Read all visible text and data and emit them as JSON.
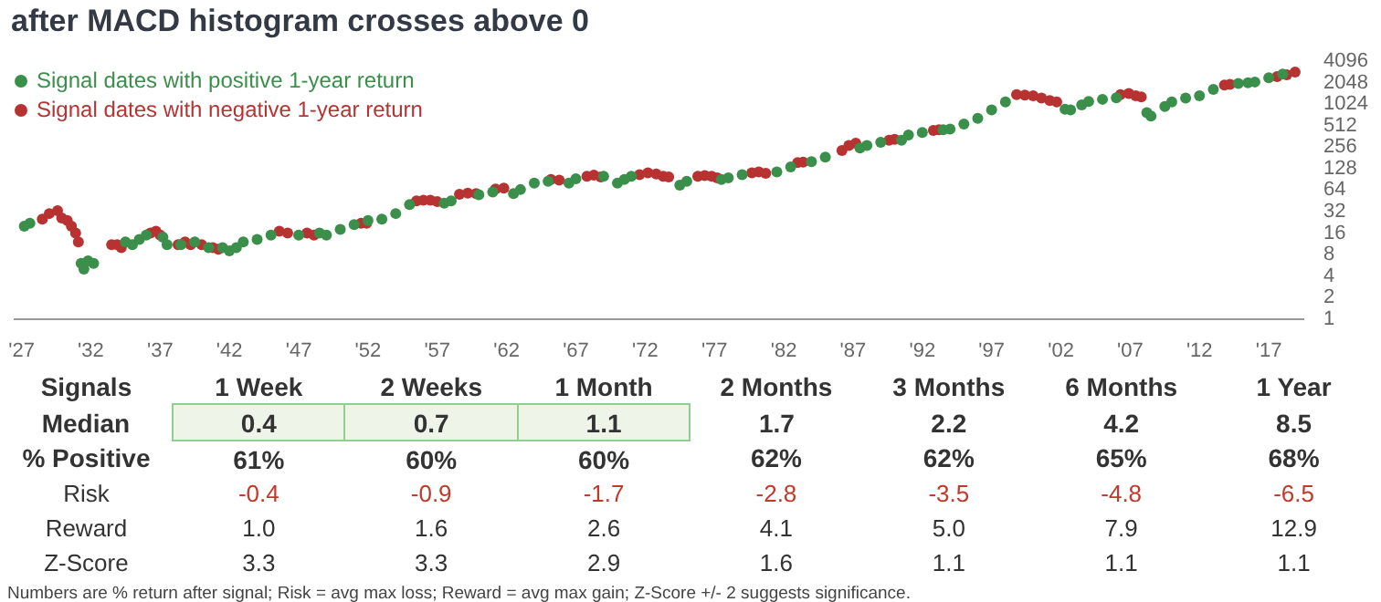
{
  "chart_data": [
    {
      "type": "scatter",
      "title": "after MACD histogram crosses above 0",
      "log": "y",
      "grid": false,
      "legend": "top left",
      "marker": "circle",
      "xlim": [
        1926.5,
        2019.5
      ],
      "xticks": [
        {
          "value": 1927,
          "label": "'27"
        },
        {
          "value": 1932,
          "label": "'32"
        },
        {
          "value": 1937,
          "label": "'37"
        },
        {
          "value": 1942,
          "label": "'42"
        },
        {
          "value": 1947,
          "label": "'47"
        },
        {
          "value": 1952,
          "label": "'52"
        },
        {
          "value": 1957,
          "label": "'57"
        },
        {
          "value": 1962,
          "label": "'62"
        },
        {
          "value": 1967,
          "label": "'67"
        },
        {
          "value": 1972,
          "label": "'72"
        },
        {
          "value": 1977,
          "label": "'77"
        },
        {
          "value": 1982,
          "label": "'82"
        },
        {
          "value": 1987,
          "label": "'87"
        },
        {
          "value": 1992,
          "label": "'92"
        },
        {
          "value": 1997,
          "label": "'97"
        },
        {
          "value": 2002,
          "label": "'02"
        },
        {
          "value": 2007,
          "label": "'07"
        },
        {
          "value": 2012,
          "label": "'12"
        },
        {
          "value": 2017,
          "label": "'17"
        }
      ],
      "ylim": [
        1,
        4096
      ],
      "yticks": [
        1,
        2,
        4,
        8,
        16,
        32,
        64,
        128,
        256,
        512,
        1024,
        2048,
        4096
      ],
      "series": [
        {
          "name": "Signal dates with positive 1-year return",
          "color": "#3a8f4a",
          "x": [
            1927.2,
            1927.6,
            1931.3,
            1931.5,
            1931.8,
            1932.2,
            1934.5,
            1935,
            1935.5,
            1936,
            1937.2,
            1937.5,
            1938.5,
            1939.5,
            1940.5,
            1941.5,
            1942,
            1942.5,
            1943,
            1944,
            1945,
            1947,
            1948.5,
            1949,
            1950,
            1951,
            1952,
            1953,
            1954,
            1955,
            1957.5,
            1958,
            1960,
            1961,
            1962.5,
            1963,
            1964,
            1965,
            1966.5,
            1967,
            1969,
            1970,
            1970.5,
            1971,
            1974.5,
            1975,
            1977.5,
            1978,
            1979,
            1981.5,
            1982.5,
            1984,
            1985,
            1987.5,
            1988,
            1989,
            1990.5,
            1991,
            1992,
            1993.5,
            1994,
            1995,
            1996,
            1997,
            1998,
            2002.3,
            2002.7,
            2003.5,
            2004,
            2005,
            2006,
            2008.2,
            2008.5,
            2009.5,
            2010,
            2011,
            2012,
            2013,
            2014.8,
            2015.5,
            2016,
            2017,
            2018
          ],
          "values": [
            20,
            22,
            6,
            5,
            6.5,
            6,
            12,
            11,
            13,
            15,
            14,
            11,
            11,
            12,
            10,
            10,
            9,
            10,
            12,
            13,
            15,
            15,
            16,
            15,
            18,
            21,
            24,
            25,
            30,
            40,
            42,
            45,
            55,
            60,
            57,
            65,
            80,
            85,
            80,
            92,
            100,
            80,
            90,
            100,
            75,
            85,
            90,
            95,
            105,
            115,
            135,
            160,
            185,
            250,
            270,
            300,
            320,
            380,
            410,
            450,
            460,
            540,
            650,
            850,
            1100,
            870,
            850,
            1000,
            1120,
            1200,
            1260,
            780,
            700,
            950,
            1100,
            1250,
            1350,
            1650,
            2000,
            2050,
            2100,
            2400,
            2700
          ]
        },
        {
          "name": "Signal dates with negative 1-year return",
          "color": "#b83232",
          "x": [
            1928.5,
            1929,
            1929.6,
            1929.9,
            1930.3,
            1930.6,
            1930.9,
            1931.1,
            1933.5,
            1933.9,
            1934.2,
            1936.3,
            1936.7,
            1937,
            1938.3,
            1938.8,
            1939.2,
            1940,
            1940.8,
            1941.2,
            1945.6,
            1946.2,
            1947.6,
            1948.1,
            1951.5,
            1951.9,
            1955.5,
            1956,
            1956.5,
            1957,
            1958.6,
            1959.2,
            1959.8,
            1961.2,
            1961.8,
            1965.2,
            1965.8,
            1967.8,
            1968.3,
            1968.8,
            1971.6,
            1972.2,
            1972.8,
            1973.3,
            1973.7,
            1975.8,
            1976.3,
            1976.8,
            1977.2,
            1979.7,
            1980.2,
            1980.7,
            1983,
            1983.4,
            1986.2,
            1986.7,
            1987.2,
            1989.6,
            1990,
            1992.8,
            1993.2,
            1998.8,
            1999.4,
            2000,
            2000.6,
            2001.2,
            2001.7,
            2006.3,
            2006.9,
            2007.4,
            2007.8,
            2013.8,
            2014.2,
            2017.6,
            2018.3,
            2018.9
          ],
          "values": [
            25,
            30,
            33,
            26,
            24,
            20,
            16,
            12,
            11,
            11,
            10,
            16,
            17,
            15,
            11,
            12,
            11,
            11,
            10,
            9.5,
            17,
            16,
            16,
            15,
            22,
            22,
            45,
            46,
            46,
            44,
            56,
            58,
            57,
            66,
            68,
            90,
            88,
            100,
            104,
            98,
            105,
            112,
            108,
            100,
            98,
            100,
            102,
            100,
            95,
            112,
            115,
            110,
            155,
            158,
            230,
            270,
            290,
            320,
            330,
            440,
            450,
            1400,
            1380,
            1350,
            1250,
            1150,
            1100,
            1400,
            1450,
            1350,
            1300,
            1900,
            1950,
            2500,
            2650,
            2900
          ]
        }
      ]
    },
    {
      "type": "other",
      "ylabel": "Signals",
      "categories": [
        "1 Week",
        "2 Weeks",
        "1 Month",
        "2 Months",
        "3 Months",
        "6 Months",
        "1 Year"
      ],
      "y_categories": [
        "Median",
        "% Positive",
        "Risk",
        "Reward",
        "Z-Score"
      ],
      "cell_labels": [
        [
          "0.4",
          "0.7",
          "1.1",
          "1.7",
          "2.2",
          "4.2",
          "8.5"
        ],
        [
          "61%",
          "60%",
          "60%",
          "62%",
          "62%",
          "65%",
          "68%"
        ],
        [
          "-0.4",
          "-0.9",
          "-1.7",
          "-2.8",
          "-3.5",
          "-4.8",
          "-6.5"
        ],
        [
          "1.0",
          "1.6",
          "2.6",
          "4.1",
          "5.0",
          "7.9",
          "12.9"
        ],
        [
          "3.3",
          "3.3",
          "2.9",
          "1.6",
          "1.1",
          "1.1",
          "1.1"
        ]
      ],
      "annotations": [
        "Numbers are % return after signal; Risk = avg max loss; Reward = avg max gain; Z-Score +/- 2 suggests significance."
      ]
    }
  ]
}
